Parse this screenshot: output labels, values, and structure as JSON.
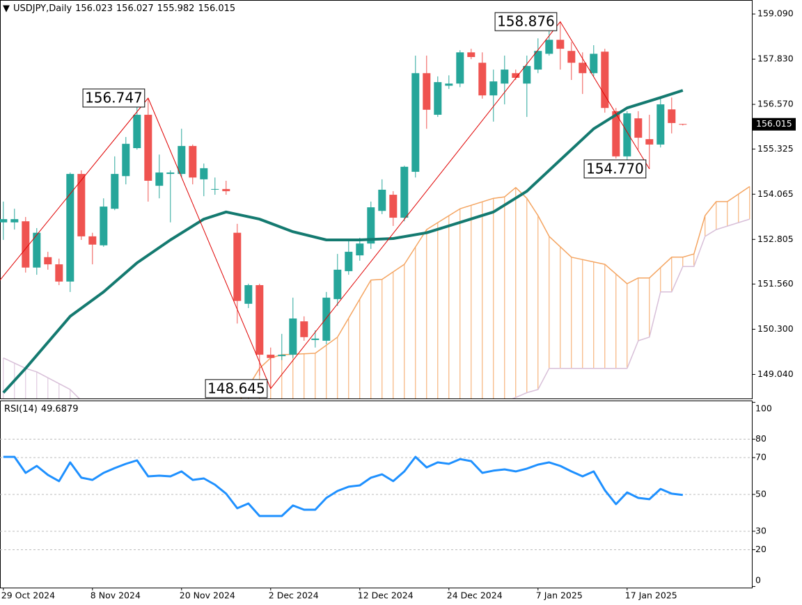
{
  "chart_data": {
    "type": "candlestick",
    "symbol": "USDJPY,Daily",
    "categories": [
      "29 Oct 2024",
      null,
      null,
      null,
      null,
      null,
      null,
      null,
      "8 Nov 2024",
      null,
      null,
      null,
      null,
      null,
      null,
      null,
      "20 Nov 2024",
      null,
      null,
      null,
      null,
      null,
      null,
      null,
      "2 Dec 2024",
      null,
      null,
      null,
      null,
      null,
      null,
      null,
      "12 Dec 2024",
      null,
      null,
      null,
      null,
      null,
      null,
      null,
      "24 Dec 2024",
      null,
      null,
      null,
      null,
      null,
      null,
      null,
      "7 Jan 2025",
      null,
      null,
      null,
      null,
      null,
      null,
      null,
      "17 Jan 2025",
      null,
      null,
      null,
      null,
      null
    ],
    "open": [
      153.28,
      153.28,
      153.31,
      152.02,
      152.31,
      152.11,
      151.63,
      154.63,
      152.89,
      152.64,
      153.66,
      154.57,
      155.35,
      156.28,
      154.3,
      154.63,
      154.63,
      155.41,
      154.48,
      154.19,
      154.21,
      152.99,
      151.01,
      151.53,
      149.59,
      149.55,
      149.59,
      150.52,
      150.0,
      149.98,
      151.14,
      151.92,
      152.36,
      152.69,
      153.6,
      154.05,
      153.41,
      154.69,
      157.44,
      156.28,
      157.09,
      157.15,
      158.02,
      157.73,
      156.82,
      157.15,
      157.44,
      157.15,
      157.54,
      157.98,
      158.37,
      158.06,
      157.73,
      157.44,
      158.04,
      156.38,
      155.12,
      156.18,
      155.6,
      155.45,
      156.43,
      156.023
    ],
    "high": [
      153.86,
      153.66,
      153.43,
      153.12,
      152.46,
      152.27,
      154.67,
      154.73,
      152.99,
      153.95,
      155.12,
      155.66,
      156.57,
      156.747,
      155.17,
      154.73,
      155.89,
      155.45,
      154.92,
      154.53,
      154.44,
      153.24,
      151.57,
      151.57,
      149.79,
      150.17,
      151.18,
      150.66,
      150.27,
      151.34,
      152.4,
      152.79,
      152.85,
      153.86,
      154.48,
      154.15,
      154.86,
      157.93,
      157.93,
      157.35,
      157.38,
      158.08,
      158.12,
      158.02,
      157.54,
      157.93,
      157.54,
      157.93,
      158.41,
      158.61,
      158.876,
      158.31,
      158.02,
      158.22,
      158.12,
      156.47,
      156.38,
      156.38,
      156.28,
      156.76,
      156.76,
      156.027
    ],
    "low": [
      152.79,
      153.08,
      151.88,
      151.82,
      151.96,
      151.53,
      151.34,
      152.79,
      152.11,
      152.6,
      153.62,
      154.34,
      155.31,
      153.86,
      153.95,
      153.28,
      154.53,
      154.34,
      154.01,
      154.05,
      154.05,
      150.46,
      150.89,
      149.01,
      148.645,
      149.44,
      149.5,
      149.98,
      149.79,
      149.88,
      150.95,
      151.82,
      152.21,
      152.54,
      153.51,
      153.18,
      153.31,
      154.53,
      155.89,
      156.22,
      157.0,
      157.05,
      157.83,
      156.73,
      156.09,
      156.57,
      157.25,
      156.22,
      157.44,
      157.93,
      157.54,
      157.25,
      156.86,
      157.35,
      156.34,
      155.06,
      155.02,
      155.31,
      154.77,
      155.37,
      155.76,
      155.982
    ],
    "close": [
      153.37,
      153.37,
      152.02,
      152.99,
      152.11,
      151.63,
      154.63,
      152.89,
      152.66,
      153.72,
      154.63,
      155.47,
      156.28,
      154.44,
      154.67,
      154.67,
      155.41,
      154.53,
      154.79,
      154.21,
      154.15,
      151.09,
      151.53,
      149.59,
      149.5,
      149.59,
      150.6,
      150.08,
      150.04,
      151.18,
      151.96,
      152.46,
      152.69,
      153.7,
      154.19,
      153.41,
      154.83,
      157.44,
      156.42,
      157.19,
      157.15,
      158.02,
      157.89,
      156.82,
      157.21,
      157.54,
      157.31,
      157.64,
      158.06,
      158.37,
      158.12,
      157.73,
      157.44,
      157.98,
      156.47,
      155.12,
      156.32,
      155.64,
      155.45,
      156.57,
      156.05,
      156.015
    ],
    "up_color": "#26a69a",
    "down_color": "#ef5350",
    "xlim": [
      -0.3,
      67.2
    ],
    "ylim": [
      148.37,
      159.48
    ],
    "yticks": [
      {
        "value": 159.09,
        "label": "159.090"
      },
      {
        "value": 157.83,
        "label": "157.830"
      },
      {
        "value": 156.57,
        "label": "156.570"
      },
      155.325,
      154.065,
      152.805,
      {
        "value": 151.56,
        "label": "151.560"
      },
      {
        "value": 150.3,
        "label": "150.300"
      },
      {
        "value": 149.04,
        "label": "149.040"
      }
    ],
    "ma": {
      "color": "#147a70",
      "x": [
        0,
        2,
        6,
        9,
        12,
        15,
        18,
        20,
        23,
        26,
        29,
        32,
        35,
        38,
        41,
        44,
        47,
        50,
        53,
        56,
        59,
        61
      ],
      "values": [
        148.53,
        149.21,
        150.66,
        151.34,
        152.15,
        152.79,
        153.37,
        153.57,
        153.37,
        153.02,
        152.79,
        152.79,
        152.83,
        152.99,
        153.28,
        153.57,
        154.15,
        155.02,
        155.89,
        156.47,
        156.76,
        156.96
      ]
    },
    "cloud": {
      "span_a": {
        "color": "#f4a460",
        "x": [
          21,
          23,
          24,
          25,
          28,
          30,
          33,
          34,
          36,
          38,
          41,
          44,
          45,
          46,
          47,
          48,
          49,
          51,
          54,
          56,
          57,
          58,
          60,
          61,
          62,
          63,
          64,
          65,
          67
        ],
        "values": [
          148.2,
          149.21,
          149.5,
          149.59,
          149.63,
          150.08,
          151.67,
          151.69,
          152.11,
          153.08,
          153.66,
          153.95,
          153.99,
          154.25,
          153.95,
          153.47,
          152.89,
          152.31,
          152.11,
          151.57,
          151.73,
          151.73,
          152.31,
          152.31,
          152.4,
          153.47,
          153.86,
          153.86,
          154.28
        ]
      },
      "span_b": {
        "color": "#d8bfd8",
        "x": [
          0,
          2,
          3,
          6,
          8,
          20,
          40,
          47,
          48,
          49,
          56,
          57,
          58,
          59,
          60,
          61,
          62,
          63,
          64,
          67
        ],
        "values": [
          149.5,
          149.21,
          149.11,
          148.62,
          148.0,
          147.2,
          147.6,
          148.53,
          148.62,
          149.21,
          149.21,
          149.98,
          150.08,
          151.34,
          151.34,
          152.05,
          152.05,
          152.89,
          153.08,
          153.37
        ]
      }
    },
    "zigzag": {
      "color": "#e00000",
      "x": [
        -0.3,
        13,
        24,
        50,
        58
      ],
      "values": [
        151.67,
        156.747,
        148.645,
        158.876,
        154.77
      ],
      "value_labels": [
        null,
        "156.747",
        "148.645",
        "158.876",
        "154.770"
      ]
    },
    "rsi": {
      "label": "RSI(14)",
      "color": "#1e90ff",
      "values": [
        70.4,
        70.4,
        61.7,
        65.5,
        60.6,
        57.2,
        67.4,
        59.1,
        57.9,
        61.7,
        64.3,
        66.6,
        68.5,
        59.8,
        60.2,
        59.8,
        62.5,
        57.9,
        58.7,
        55.3,
        50.4,
        42.5,
        45.1,
        38.3,
        38.3,
        38.3,
        44.0,
        41.7,
        41.7,
        48.1,
        51.9,
        54.2,
        54.9,
        59.1,
        60.9,
        57.2,
        62.5,
        70.4,
        64.7,
        67.4,
        66.6,
        69.2,
        68.1,
        61.7,
        62.9,
        63.6,
        62.5,
        64.0,
        66.2,
        67.4,
        65.5,
        62.5,
        59.8,
        62.5,
        52.3,
        44.7,
        51.1,
        48.1,
        47.4,
        53.0,
        50.4,
        49.6879
      ],
      "ylim": [
        -0.6,
        100.6
      ],
      "yticks": [
        100,
        80,
        70,
        50,
        30,
        20,
        0
      ],
      "levels": [
        80,
        70,
        50,
        30,
        20
      ]
    }
  }
}
